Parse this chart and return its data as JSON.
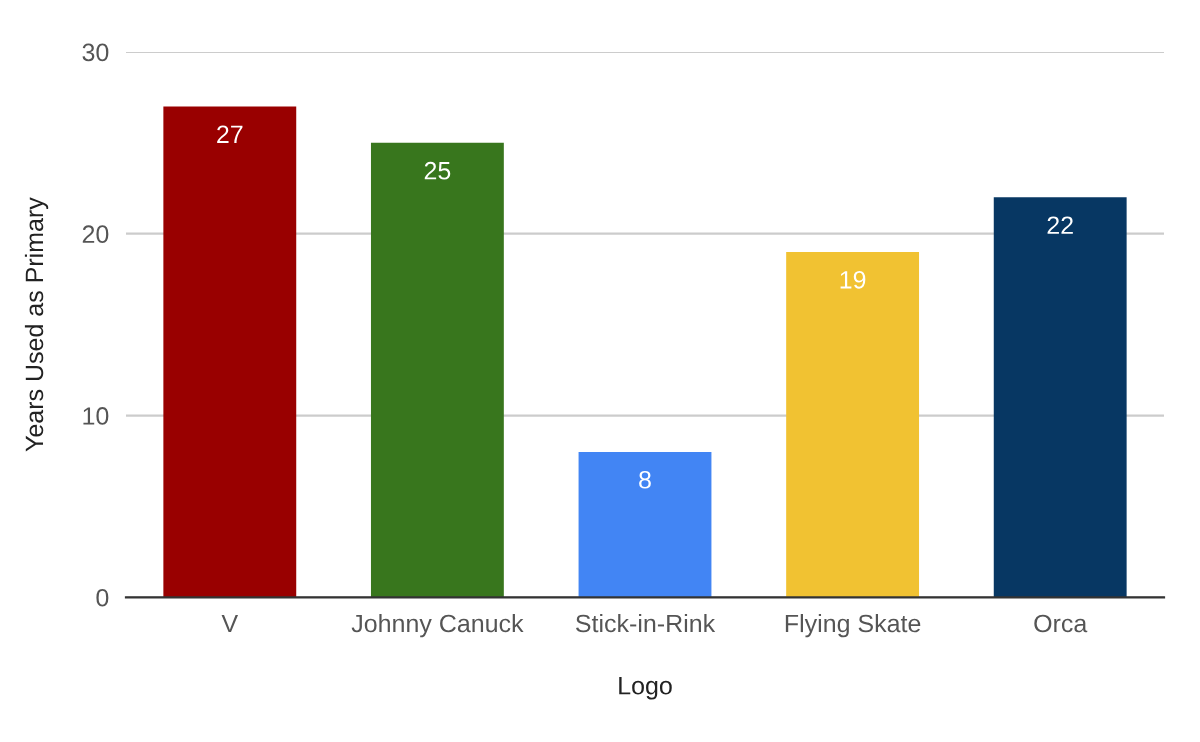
{
  "chart_data": {
    "type": "bar",
    "xlabel": "Logo",
    "ylabel": "Years Used as Primary",
    "categories": [
      "V",
      "Johnny Canuck",
      "Stick-in-Rink",
      "Flying Skate",
      "Orca"
    ],
    "values": [
      27,
      25,
      8,
      19,
      22
    ],
    "colors": [
      "#990000",
      "#38761d",
      "#4285f4",
      "#f1c232",
      "#073763"
    ],
    "ylim": [
      0,
      30
    ],
    "yticks": [
      0,
      10,
      20,
      30
    ],
    "grid": "y",
    "data_labels": true
  }
}
